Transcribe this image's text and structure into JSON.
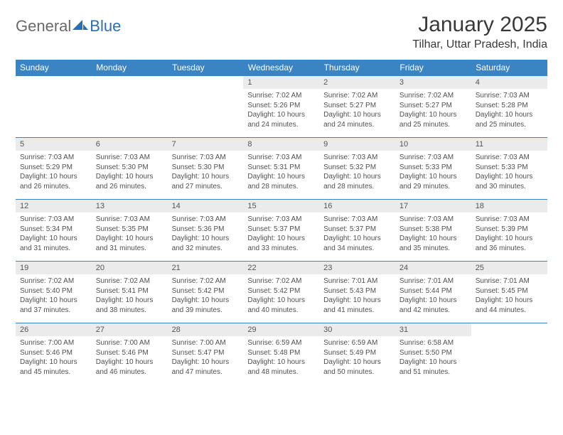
{
  "logo": {
    "general": "General",
    "blue": "Blue"
  },
  "title": "January 2025",
  "location": "Tilhar, Uttar Pradesh, India",
  "colors": {
    "header_bg": "#3a84c4",
    "header_text": "#ffffff",
    "daynum_bg": "#ebebeb",
    "border": "#3a84c4",
    "text": "#505050",
    "logo_gray": "#6a6a6a",
    "logo_blue": "#2b6fb0"
  },
  "daysOfWeek": [
    "Sunday",
    "Monday",
    "Tuesday",
    "Wednesday",
    "Thursday",
    "Friday",
    "Saturday"
  ],
  "weeks": [
    [
      {
        "day": "",
        "lines": []
      },
      {
        "day": "",
        "lines": []
      },
      {
        "day": "",
        "lines": []
      },
      {
        "day": "1",
        "lines": [
          "Sunrise: 7:02 AM",
          "Sunset: 5:26 PM",
          "Daylight: 10 hours and 24 minutes."
        ]
      },
      {
        "day": "2",
        "lines": [
          "Sunrise: 7:02 AM",
          "Sunset: 5:27 PM",
          "Daylight: 10 hours and 24 minutes."
        ]
      },
      {
        "day": "3",
        "lines": [
          "Sunrise: 7:02 AM",
          "Sunset: 5:27 PM",
          "Daylight: 10 hours and 25 minutes."
        ]
      },
      {
        "day": "4",
        "lines": [
          "Sunrise: 7:03 AM",
          "Sunset: 5:28 PM",
          "Daylight: 10 hours and 25 minutes."
        ]
      }
    ],
    [
      {
        "day": "5",
        "lines": [
          "Sunrise: 7:03 AM",
          "Sunset: 5:29 PM",
          "Daylight: 10 hours and 26 minutes."
        ]
      },
      {
        "day": "6",
        "lines": [
          "Sunrise: 7:03 AM",
          "Sunset: 5:30 PM",
          "Daylight: 10 hours and 26 minutes."
        ]
      },
      {
        "day": "7",
        "lines": [
          "Sunrise: 7:03 AM",
          "Sunset: 5:30 PM",
          "Daylight: 10 hours and 27 minutes."
        ]
      },
      {
        "day": "8",
        "lines": [
          "Sunrise: 7:03 AM",
          "Sunset: 5:31 PM",
          "Daylight: 10 hours and 28 minutes."
        ]
      },
      {
        "day": "9",
        "lines": [
          "Sunrise: 7:03 AM",
          "Sunset: 5:32 PM",
          "Daylight: 10 hours and 28 minutes."
        ]
      },
      {
        "day": "10",
        "lines": [
          "Sunrise: 7:03 AM",
          "Sunset: 5:33 PM",
          "Daylight: 10 hours and 29 minutes."
        ]
      },
      {
        "day": "11",
        "lines": [
          "Sunrise: 7:03 AM",
          "Sunset: 5:33 PM",
          "Daylight: 10 hours and 30 minutes."
        ]
      }
    ],
    [
      {
        "day": "12",
        "lines": [
          "Sunrise: 7:03 AM",
          "Sunset: 5:34 PM",
          "Daylight: 10 hours and 31 minutes."
        ]
      },
      {
        "day": "13",
        "lines": [
          "Sunrise: 7:03 AM",
          "Sunset: 5:35 PM",
          "Daylight: 10 hours and 31 minutes."
        ]
      },
      {
        "day": "14",
        "lines": [
          "Sunrise: 7:03 AM",
          "Sunset: 5:36 PM",
          "Daylight: 10 hours and 32 minutes."
        ]
      },
      {
        "day": "15",
        "lines": [
          "Sunrise: 7:03 AM",
          "Sunset: 5:37 PM",
          "Daylight: 10 hours and 33 minutes."
        ]
      },
      {
        "day": "16",
        "lines": [
          "Sunrise: 7:03 AM",
          "Sunset: 5:37 PM",
          "Daylight: 10 hours and 34 minutes."
        ]
      },
      {
        "day": "17",
        "lines": [
          "Sunrise: 7:03 AM",
          "Sunset: 5:38 PM",
          "Daylight: 10 hours and 35 minutes."
        ]
      },
      {
        "day": "18",
        "lines": [
          "Sunrise: 7:03 AM",
          "Sunset: 5:39 PM",
          "Daylight: 10 hours and 36 minutes."
        ]
      }
    ],
    [
      {
        "day": "19",
        "lines": [
          "Sunrise: 7:02 AM",
          "Sunset: 5:40 PM",
          "Daylight: 10 hours and 37 minutes."
        ]
      },
      {
        "day": "20",
        "lines": [
          "Sunrise: 7:02 AM",
          "Sunset: 5:41 PM",
          "Daylight: 10 hours and 38 minutes."
        ]
      },
      {
        "day": "21",
        "lines": [
          "Sunrise: 7:02 AM",
          "Sunset: 5:42 PM",
          "Daylight: 10 hours and 39 minutes."
        ]
      },
      {
        "day": "22",
        "lines": [
          "Sunrise: 7:02 AM",
          "Sunset: 5:42 PM",
          "Daylight: 10 hours and 40 minutes."
        ]
      },
      {
        "day": "23",
        "lines": [
          "Sunrise: 7:01 AM",
          "Sunset: 5:43 PM",
          "Daylight: 10 hours and 41 minutes."
        ]
      },
      {
        "day": "24",
        "lines": [
          "Sunrise: 7:01 AM",
          "Sunset: 5:44 PM",
          "Daylight: 10 hours and 42 minutes."
        ]
      },
      {
        "day": "25",
        "lines": [
          "Sunrise: 7:01 AM",
          "Sunset: 5:45 PM",
          "Daylight: 10 hours and 44 minutes."
        ]
      }
    ],
    [
      {
        "day": "26",
        "lines": [
          "Sunrise: 7:00 AM",
          "Sunset: 5:46 PM",
          "Daylight: 10 hours and 45 minutes."
        ]
      },
      {
        "day": "27",
        "lines": [
          "Sunrise: 7:00 AM",
          "Sunset: 5:46 PM",
          "Daylight: 10 hours and 46 minutes."
        ]
      },
      {
        "day": "28",
        "lines": [
          "Sunrise: 7:00 AM",
          "Sunset: 5:47 PM",
          "Daylight: 10 hours and 47 minutes."
        ]
      },
      {
        "day": "29",
        "lines": [
          "Sunrise: 6:59 AM",
          "Sunset: 5:48 PM",
          "Daylight: 10 hours and 48 minutes."
        ]
      },
      {
        "day": "30",
        "lines": [
          "Sunrise: 6:59 AM",
          "Sunset: 5:49 PM",
          "Daylight: 10 hours and 50 minutes."
        ]
      },
      {
        "day": "31",
        "lines": [
          "Sunrise: 6:58 AM",
          "Sunset: 5:50 PM",
          "Daylight: 10 hours and 51 minutes."
        ]
      },
      {
        "day": "",
        "lines": []
      }
    ]
  ]
}
